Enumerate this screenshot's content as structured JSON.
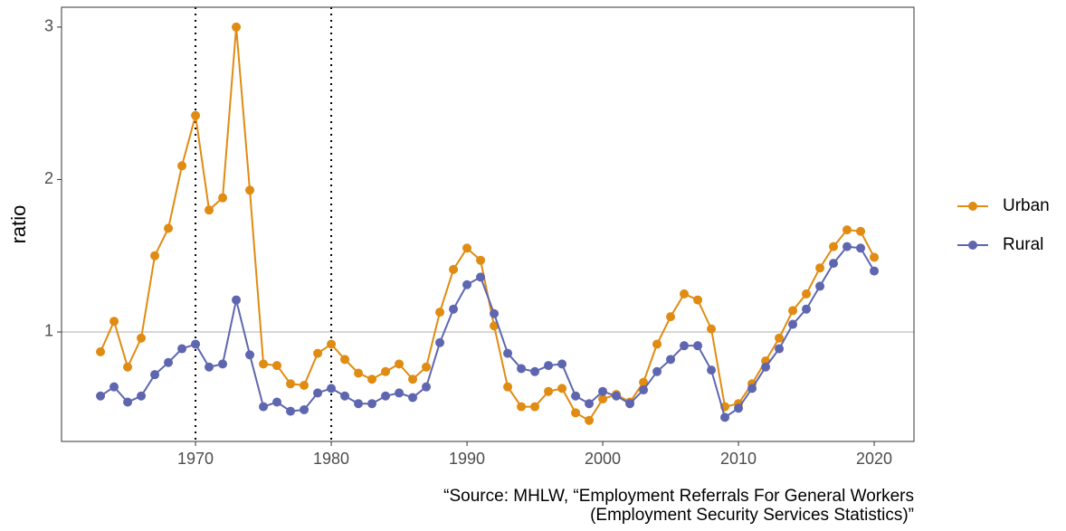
{
  "chart_data": {
    "type": "line",
    "y_label": "ratio",
    "caption": [
      "“Source: MHLW, “Employment Referrals For General Workers",
      "(Employment Security Services Statistics)”"
    ],
    "x": [
      1963,
      1964,
      1965,
      1966,
      1967,
      1968,
      1969,
      1970,
      1971,
      1972,
      1973,
      1974,
      1975,
      1976,
      1977,
      1978,
      1979,
      1980,
      1981,
      1982,
      1983,
      1984,
      1985,
      1986,
      1987,
      1988,
      1989,
      1990,
      1991,
      1992,
      1993,
      1994,
      1995,
      1996,
      1997,
      1998,
      1999,
      2000,
      2001,
      2002,
      2003,
      2004,
      2005,
      2006,
      2007,
      2008,
      2009,
      2010,
      2011,
      2012,
      2013,
      2014,
      2015,
      2016,
      2017,
      2018,
      2019,
      2020
    ],
    "series": [
      {
        "name": "Urban",
        "color": "#e08b12",
        "values": [
          0.87,
          1.07,
          0.77,
          0.96,
          1.5,
          1.68,
          2.09,
          2.42,
          1.8,
          1.88,
          3.0,
          1.93,
          0.79,
          0.78,
          0.66,
          0.65,
          0.86,
          0.92,
          0.82,
          0.73,
          0.69,
          0.74,
          0.79,
          0.69,
          0.77,
          1.13,
          1.41,
          1.55,
          1.47,
          1.04,
          0.64,
          0.51,
          0.51,
          0.61,
          0.63,
          0.47,
          0.42,
          0.56,
          0.59,
          0.54,
          0.67,
          0.92,
          1.1,
          1.25,
          1.21,
          1.02,
          0.51,
          0.53,
          0.66,
          0.81,
          0.96,
          1.14,
          1.25,
          1.42,
          1.56,
          1.67,
          1.66,
          1.49
        ]
      },
      {
        "name": "Rural",
        "color": "#5e66b0",
        "values": [
          0.58,
          0.64,
          0.54,
          0.58,
          0.72,
          0.8,
          0.89,
          0.92,
          0.77,
          0.79,
          1.21,
          0.85,
          0.51,
          0.54,
          0.48,
          0.49,
          0.6,
          0.63,
          0.58,
          0.53,
          0.53,
          0.58,
          0.6,
          0.57,
          0.64,
          0.93,
          1.15,
          1.31,
          1.36,
          1.12,
          0.86,
          0.76,
          0.74,
          0.78,
          0.79,
          0.58,
          0.53,
          0.61,
          0.58,
          0.53,
          0.62,
          0.74,
          0.82,
          0.91,
          0.91,
          0.75,
          0.44,
          0.5,
          0.63,
          0.77,
          0.89,
          1.05,
          1.15,
          1.3,
          1.45,
          1.56,
          1.55,
          1.4
        ]
      }
    ],
    "xlim": [
      1960.13,
      2022.93
    ],
    "ylim": [
      0.282,
      3.13
    ],
    "xticks": [
      1970,
      1980,
      1990,
      2000,
      2010,
      2020
    ],
    "yticks": [
      1,
      2,
      3
    ],
    "vlines": [
      1970,
      1980
    ],
    "hlines": [
      1
    ],
    "grid": false,
    "legend_position": "right"
  }
}
